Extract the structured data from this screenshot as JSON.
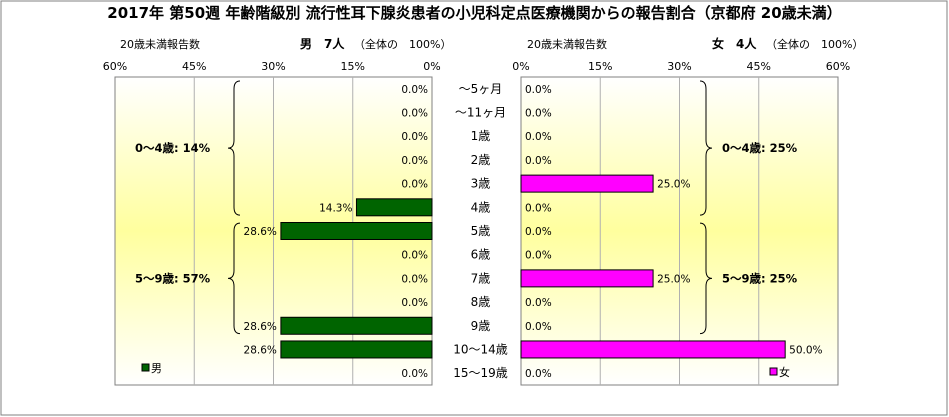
{
  "title": "2017年 第50週 年齢階級別 流行性耳下腺炎患者の小児科定点医療機関からの報告割合（京都府 20歳未満）",
  "left_header": {
    "label": "20歳未満報告数",
    "sex": "男",
    "count": "7人",
    "total_note": "（全体の　100%）"
  },
  "right_header": {
    "label": "20歳未満報告数",
    "sex": "女",
    "count": "4人",
    "total_note": "（全体の　100%）"
  },
  "colors": {
    "male": "#006400",
    "female": "#ff00ff"
  },
  "chart_data": {
    "type": "bar",
    "orientation": "horizontal-butterfly",
    "categories": [
      "～5ヶ月",
      "～11ヶ月",
      "1歳",
      "2歳",
      "3歳",
      "4歳",
      "5歳",
      "6歳",
      "7歳",
      "8歳",
      "9歳",
      "10～14歳",
      "15～19歳"
    ],
    "x_ticks": [
      "60%",
      "45%",
      "30%",
      "15%",
      "0%"
    ],
    "x_ticks_right": [
      "0%",
      "15%",
      "30%",
      "45%",
      "60%"
    ],
    "xlim": [
      0,
      60
    ],
    "series": [
      {
        "name": "男",
        "side": "left",
        "values": [
          0,
          0,
          0,
          0,
          0,
          14.3,
          28.6,
          0,
          0,
          0,
          28.6,
          28.6,
          0
        ],
        "labels": [
          "0.0%",
          "0.0%",
          "0.0%",
          "0.0%",
          "0.0%",
          "14.3%",
          "28.6%",
          "0.0%",
          "0.0%",
          "0.0%",
          "28.6%",
          "28.6%",
          "0.0%"
        ]
      },
      {
        "name": "女",
        "side": "right",
        "values": [
          0,
          0,
          0,
          0,
          25,
          0,
          0,
          0,
          25,
          0,
          0,
          50,
          0
        ],
        "labels": [
          "0.0%",
          "0.0%",
          "0.0%",
          "0.0%",
          "25.0%",
          "0.0%",
          "0.0%",
          "0.0%",
          "25.0%",
          "0.0%",
          "0.0%",
          "50.0%",
          "0.0%"
        ]
      }
    ],
    "group_annotations": {
      "left": [
        {
          "text": "0～4歳: 14%",
          "from": 0,
          "to": 5
        },
        {
          "text": "5～9歳: 57%",
          "from": 6,
          "to": 10
        }
      ],
      "right": [
        {
          "text": "0～4歳: 25%",
          "from": 0,
          "to": 5
        },
        {
          "text": "5～9歳: 25%",
          "from": 6,
          "to": 10
        }
      ]
    },
    "legend": {
      "left": "男",
      "right": "女",
      "placement": "bottom"
    },
    "grid": true
  }
}
